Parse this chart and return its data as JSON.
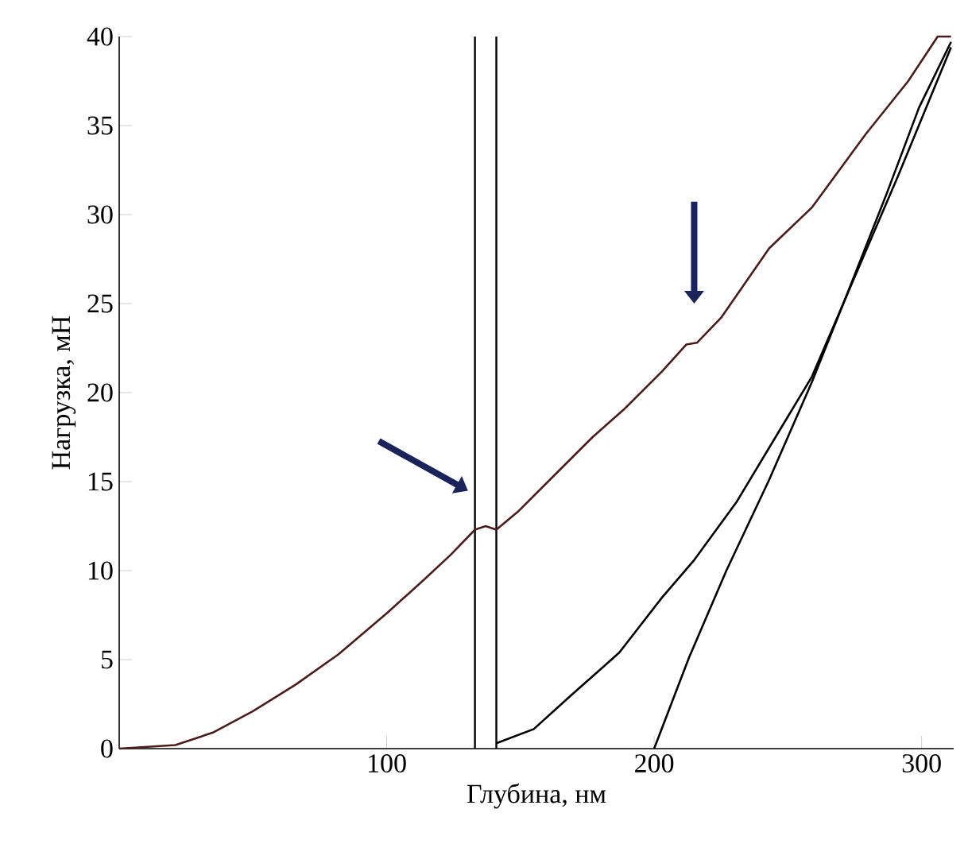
{
  "chart_data": {
    "type": "line",
    "xlabel": "Глубина, нм",
    "ylabel": "Нагрузка, мН",
    "xlim": [
      0,
      312
    ],
    "ylim": [
      0,
      40
    ],
    "xticks": [
      100,
      200,
      300
    ],
    "yticks": [
      0,
      5,
      10,
      15,
      20,
      25,
      30,
      35,
      40
    ],
    "marker": "none",
    "line_style": "solid",
    "ref_lines": [
      {
        "axis": "x",
        "value": 133,
        "color": "#000000"
      },
      {
        "axis": "x",
        "value": 141,
        "color": "#000000"
      }
    ],
    "series": [
      {
        "color": "#4a1c1c",
        "x": [
          0,
          21,
          35,
          50,
          66,
          82,
          100,
          114,
          124,
          133,
          137,
          141,
          149,
          163,
          177,
          189,
          203,
          212,
          216,
          225,
          243,
          259,
          279,
          295,
          306,
          311
        ],
        "values": [
          0,
          0.2,
          0.9,
          2.1,
          3.6,
          5.3,
          7.6,
          9.5,
          10.9,
          12.3,
          12.5,
          12.3,
          13.3,
          15.4,
          17.5,
          19.1,
          21.2,
          22.7,
          22.8,
          24.2,
          28.1,
          30.4,
          34.5,
          37.5,
          40,
          40
        ]
      },
      {
        "color": "#000000",
        "x": [
          141,
          155,
          169,
          187,
          203,
          215,
          231,
          247,
          259,
          271,
          291,
          311
        ],
        "values": [
          0.3,
          1.1,
          3.0,
          5.4,
          8.5,
          10.6,
          13.9,
          17.9,
          20.9,
          25.1,
          32.1,
          39.4
        ]
      },
      {
        "color": "#000000",
        "x": [
          200,
          213,
          227,
          243,
          259,
          271,
          287,
          299,
          311
        ],
        "values": [
          0,
          5.1,
          10.0,
          15.1,
          20.6,
          25.1,
          31.2,
          36,
          39.7
        ]
      }
    ]
  }
}
